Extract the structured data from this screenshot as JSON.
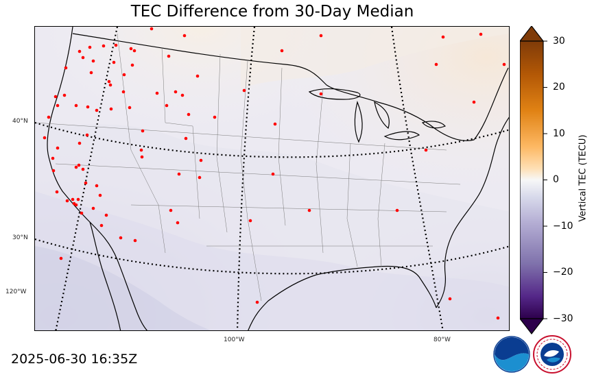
{
  "title": "TEC Difference from 30-Day Median",
  "timestamp": "2025-06-30 16:35Z",
  "map": {
    "lat_labels": [
      "40°N",
      "30°N",
      "120°W"
    ],
    "lon_labels": [
      "100°W",
      "80°W"
    ],
    "station_marker_color": "#ff0000",
    "graticule_style": "dotted"
  },
  "colorbar": {
    "label": "Vertical TEC (TECU)",
    "ticks": [
      "30",
      "20",
      "10",
      "0",
      "−10",
      "−20",
      "−30"
    ],
    "range": [
      -30,
      30
    ],
    "colormap": "PuOr_r",
    "extend": "both"
  },
  "logos": [
    "noaa-logo",
    "national-weather-service-logo"
  ]
}
